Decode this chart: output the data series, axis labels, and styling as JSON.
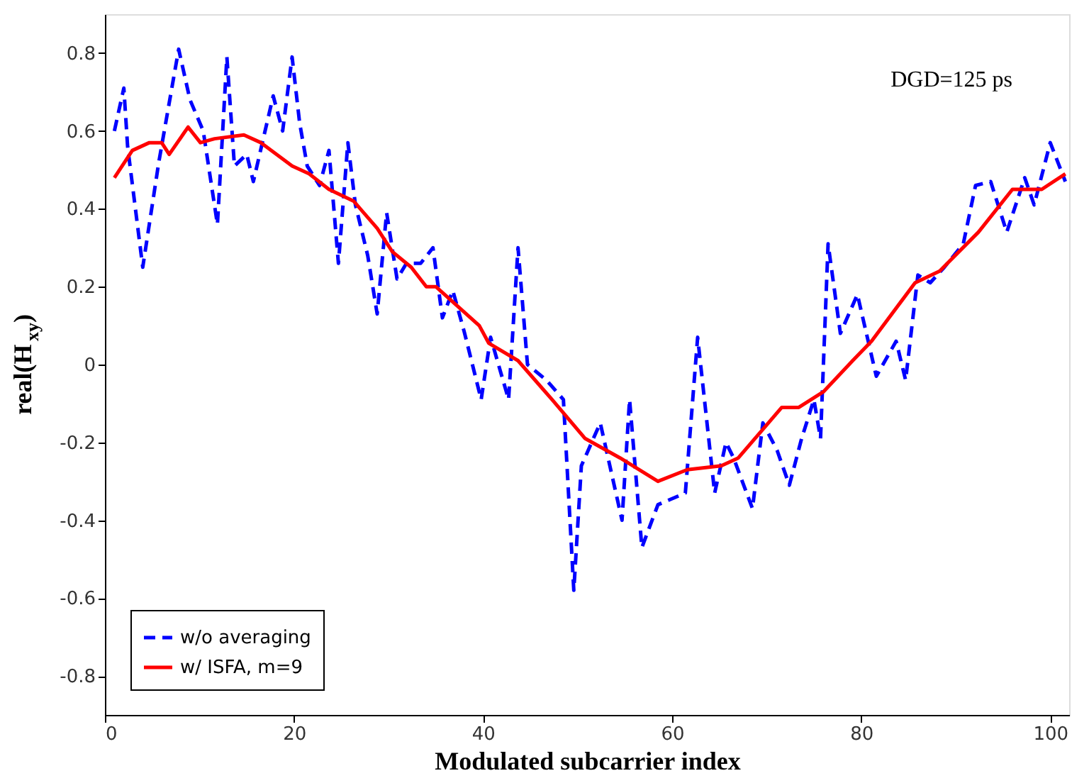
{
  "chart_data": {
    "type": "line",
    "xlabel": "Modulated subcarrier index",
    "ylabel": "real(H$_{xy}$)",
    "annotations": [
      "DGD=125 ps"
    ],
    "xlim": [
      0,
      102
    ],
    "ylim": [
      -0.9,
      0.9
    ],
    "xticks": [
      0,
      20,
      40,
      60,
      80,
      100
    ],
    "yticks": [
      -0.8,
      -0.6,
      -0.4,
      -0.2,
      0,
      0.2,
      0.4,
      0.6,
      0.8
    ],
    "grid": false,
    "legend": "bottom left",
    "marker": "none",
    "series": [
      {
        "name": "w/o averaging",
        "color": "#0000ff",
        "line_style": "dashed",
        "x": [
          1,
          2,
          2.4,
          4,
          5.7,
          7.8,
          9,
          10.4,
          11.9,
          12.9,
          13.7,
          15,
          15.7,
          17.8,
          18.8,
          19.8,
          20.6,
          21.4,
          22.7,
          23.7,
          24.7,
          25.7,
          26.5,
          27.8,
          28.8,
          29.8,
          30.9,
          31.9,
          33.4,
          34.7,
          35.7,
          36.8,
          38,
          39.8,
          40.8,
          42.7,
          43.7,
          44.7,
          46.7,
          48.5,
          49.6,
          50.4,
          52.4,
          54.7,
          55.5,
          56.8,
          58.5,
          61.4,
          62.7,
          64.5,
          65.7,
          66.5,
          68.5,
          69.6,
          71.1,
          72.4,
          73.7,
          75,
          75.7,
          76.5,
          77.8,
          79.6,
          81.6,
          83.7,
          84.7,
          86,
          87.3,
          88.8,
          90.8,
          92.1,
          93.7,
          95.4,
          97.3,
          98.3,
          100,
          101.6
        ],
        "values": [
          0.6,
          0.71,
          0.56,
          0.25,
          0.52,
          0.81,
          0.68,
          0.6,
          0.36,
          0.79,
          0.51,
          0.54,
          0.47,
          0.69,
          0.6,
          0.79,
          0.62,
          0.51,
          0.46,
          0.55,
          0.26,
          0.57,
          0.41,
          0.28,
          0.13,
          0.39,
          0.22,
          0.26,
          0.26,
          0.3,
          0.12,
          0.19,
          0.085,
          -0.09,
          0.07,
          -0.09,
          0.3,
          0,
          -0.04,
          -0.09,
          -0.58,
          -0.26,
          -0.15,
          -0.4,
          -0.09,
          -0.47,
          -0.36,
          -0.33,
          0.07,
          -0.33,
          -0.2,
          -0.24,
          -0.37,
          -0.15,
          -0.22,
          -0.31,
          -0.19,
          -0.09,
          -0.19,
          0.31,
          0.08,
          0.18,
          -0.03,
          0.06,
          -0.04,
          0.23,
          0.21,
          0.25,
          0.31,
          0.46,
          0.47,
          0.34,
          0.48,
          0.41,
          0.57,
          0.47
        ]
      },
      {
        "name": "w/ ISFA, m=9",
        "color": "#ff0000",
        "line_style": "solid",
        "x": [
          1,
          2.9,
          4.7,
          6,
          6.8,
          8.8,
          10.1,
          11.6,
          14.7,
          16.5,
          19.8,
          21.6,
          23.7,
          26.3,
          28.8,
          30.4,
          32.4,
          34,
          35,
          39.6,
          40.6,
          43.7,
          47.3,
          50.8,
          54.5,
          58.5,
          61.6,
          65.2,
          67,
          71.6,
          73.4,
          76,
          79.1,
          81.1,
          85.7,
          88.3,
          92.4,
          96,
          99.1,
          101.6
        ],
        "values": [
          0.48,
          0.55,
          0.57,
          0.57,
          0.54,
          0.61,
          0.57,
          0.58,
          0.59,
          0.57,
          0.51,
          0.49,
          0.45,
          0.42,
          0.35,
          0.29,
          0.25,
          0.2,
          0.2,
          0.1,
          0.055,
          0.01,
          -0.09,
          -0.19,
          -0.24,
          -0.3,
          -0.27,
          -0.26,
          -0.24,
          -0.11,
          -0.11,
          -0.07,
          0.01,
          0.06,
          0.21,
          0.24,
          0.34,
          0.45,
          0.45,
          0.49
        ]
      }
    ]
  }
}
